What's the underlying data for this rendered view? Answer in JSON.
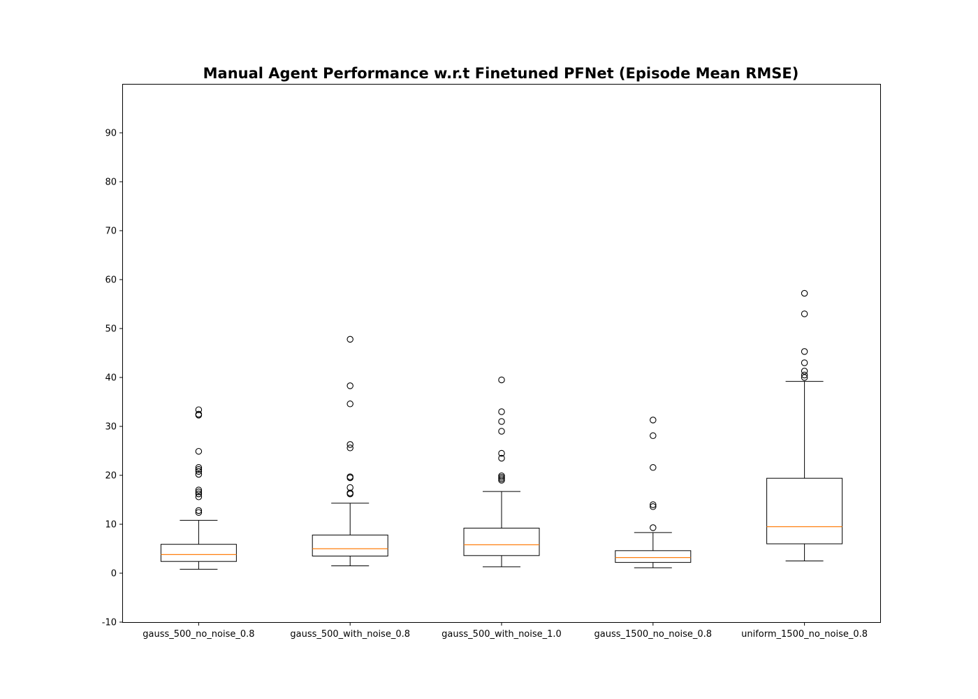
{
  "chart_data": {
    "type": "box",
    "title": "Manual Agent Performance w.r.t Finetuned PFNet (Episode Mean RMSE)",
    "xlabel": "",
    "ylabel": "",
    "ylim": [
      -10,
      100
    ],
    "yticks": [
      -10,
      0,
      10,
      20,
      30,
      40,
      50,
      60,
      70,
      80,
      90
    ],
    "grid": false,
    "colors": {
      "box": "#000000",
      "median": "#ff7f0e",
      "flier": "#000000"
    },
    "categories": [
      "gauss_500_no_noise_0.8",
      "gauss_500_with_noise_0.8",
      "gauss_500_with_noise_1.0",
      "gauss_1500_no_noise_0.8",
      "uniform_1500_no_noise_0.8"
    ],
    "series": [
      {
        "whisker_low": 0.8,
        "q1": 2.4,
        "median": 3.8,
        "q3": 5.9,
        "whisker_high": 10.8,
        "outliers": [
          12.4,
          12.8,
          15.6,
          16.2,
          16.6,
          17.0,
          20.2,
          20.8,
          21.2,
          21.6,
          24.9,
          32.3,
          32.5,
          33.4
        ]
      },
      {
        "whisker_low": 1.5,
        "q1": 3.5,
        "median": 5.0,
        "q3": 7.8,
        "whisker_high": 14.3,
        "outliers": [
          16.2,
          16.4,
          17.5,
          19.5,
          19.7,
          25.6,
          26.3,
          34.6,
          38.3,
          47.8
        ]
      },
      {
        "whisker_low": 1.3,
        "q1": 3.6,
        "median": 5.8,
        "q3": 9.2,
        "whisker_high": 16.7,
        "outliers": [
          19.0,
          19.3,
          19.6,
          19.9,
          23.5,
          24.5,
          29.0,
          31.0,
          33.0,
          39.5
        ]
      },
      {
        "whisker_low": 1.1,
        "q1": 2.2,
        "median": 3.2,
        "q3": 4.6,
        "whisker_high": 8.3,
        "outliers": [
          9.3,
          13.6,
          14.0,
          21.6,
          28.1,
          31.3
        ]
      },
      {
        "whisker_low": 2.5,
        "q1": 6.0,
        "median": 9.5,
        "q3": 19.4,
        "whisker_high": 39.2,
        "outliers": [
          40.0,
          40.5,
          41.3,
          43.0,
          45.3,
          53.0,
          57.2
        ]
      }
    ]
  }
}
